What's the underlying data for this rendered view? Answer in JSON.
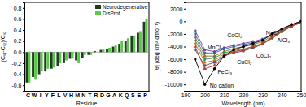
{
  "chart_data": [
    {
      "type": "bar",
      "y_label": "(Cₛ₁-Cₛ₂)/Cₛ₂",
      "x_label": "Residue",
      "categories": [
        "C",
        "W",
        "I",
        "Y",
        "F",
        "L",
        "V",
        "H",
        "M",
        "N",
        "T",
        "R",
        "D",
        "G",
        "A",
        "K",
        "Q",
        "S",
        "E",
        "P"
      ],
      "series": [
        {
          "name": "Neurodegenerative",
          "color": "#1f3d1f",
          "values": [
            -0.55,
            -0.45,
            -0.4,
            -0.35,
            -0.3,
            -0.25,
            -0.2,
            -0.12,
            -0.15,
            -0.1,
            -0.05,
            0.02,
            0.04,
            0.06,
            0.1,
            0.15,
            0.2,
            0.3,
            0.35,
            0.55
          ]
        },
        {
          "name": "DisProt",
          "color": "#5cc84a",
          "values": [
            -0.55,
            -0.5,
            -0.35,
            -0.3,
            -0.28,
            -0.2,
            -0.15,
            -0.1,
            -0.2,
            -0.05,
            -0.05,
            0.0,
            0.05,
            0.08,
            0.12,
            0.2,
            0.25,
            0.3,
            0.38,
            0.6
          ]
        }
      ],
      "ylim": [
        -0.7,
        0.9
      ],
      "yticks": [
        {
          "value": -0.6,
          "label": "-0.6"
        },
        {
          "value": -0.4,
          "label": "-0.4"
        },
        {
          "value": -0.2,
          "label": "-0.2"
        },
        {
          "value": 0,
          "label": "0.0"
        },
        {
          "value": 0.2,
          "label": "0.2"
        },
        {
          "value": 0.4,
          "label": "0.4"
        },
        {
          "value": 0.6,
          "label": "0.6"
        },
        {
          "value": 0.8,
          "label": "0.8"
        }
      ],
      "legend": "upper right"
    },
    {
      "type": "line",
      "x_label": "Wavelength (nm)",
      "y_label": "[θ] (deg cm² dmol⁻¹)",
      "x": [
        195,
        200,
        205,
        210,
        215,
        220,
        225,
        230,
        235,
        240,
        245,
        250
      ],
      "xlim": [
        190,
        250
      ],
      "xticks": [
        190,
        200,
        210,
        220,
        230,
        240,
        250
      ],
      "ylim": [
        -11000,
        3000
      ],
      "yticks": [
        -10000,
        -8000,
        -6000,
        -4000,
        -2000,
        0,
        2000
      ],
      "series": [
        {
          "name": "CdCl₂",
          "color": "#7a3b8f",
          "marker": "circle",
          "values": [
            -1500,
            -4500,
            -4800,
            -4200,
            -3800,
            -3500,
            -3200,
            -2800,
            -2000,
            -1200,
            -500,
            0
          ]
        },
        {
          "name": "NaCl",
          "color": "#2b6cb0",
          "marker": "square",
          "values": [
            -2000,
            -5000,
            -5000,
            -4400,
            -4000,
            -3700,
            -3400,
            -2900,
            -2100,
            -1300,
            -500,
            0
          ]
        },
        {
          "name": "MnCl₂",
          "color": "#8b6b1f",
          "marker": "triangle",
          "values": [
            -2500,
            -5500,
            -5500,
            -4800,
            -4300,
            -4000,
            -3700,
            -3200,
            -2300,
            -1400,
            -600,
            0
          ]
        },
        {
          "name": "AlCl₃",
          "color": "#2e8b57",
          "marker": "diamond",
          "values": [
            -3000,
            -6000,
            -5800,
            -5000,
            -4600,
            -4400,
            -4000,
            -3500,
            -2500,
            -1500,
            -700,
            -100
          ]
        },
        {
          "name": "CoCl₂",
          "color": "#d2691e",
          "marker": "circle",
          "values": [
            -3500,
            -6500,
            -6200,
            -5200,
            -4800,
            -4600,
            -4200,
            -3600,
            -2700,
            -1700,
            -800,
            -200
          ]
        },
        {
          "name": "CuCl₂",
          "color": "#4b5563",
          "marker": "square",
          "values": [
            -4500,
            -7000,
            -6500,
            -5500,
            -5000,
            -4700,
            -4200,
            -3600,
            -2600,
            -1600,
            -800,
            -200
          ]
        },
        {
          "name": "FeCl₃",
          "color": "#c0392b",
          "marker": "triangle",
          "values": [
            -4000,
            -7500,
            -7000,
            -5500,
            -4800,
            -4500,
            -4000,
            -3500,
            -2500,
            -1500,
            -700,
            -100
          ]
        },
        {
          "name": "No cation",
          "color": "#000000",
          "marker": "circle",
          "values": [
            -6000,
            -10000,
            -7500,
            -5500,
            -4500,
            -4000,
            -3500,
            -3000,
            -2000,
            -1200,
            -500,
            0
          ]
        }
      ]
    }
  ]
}
